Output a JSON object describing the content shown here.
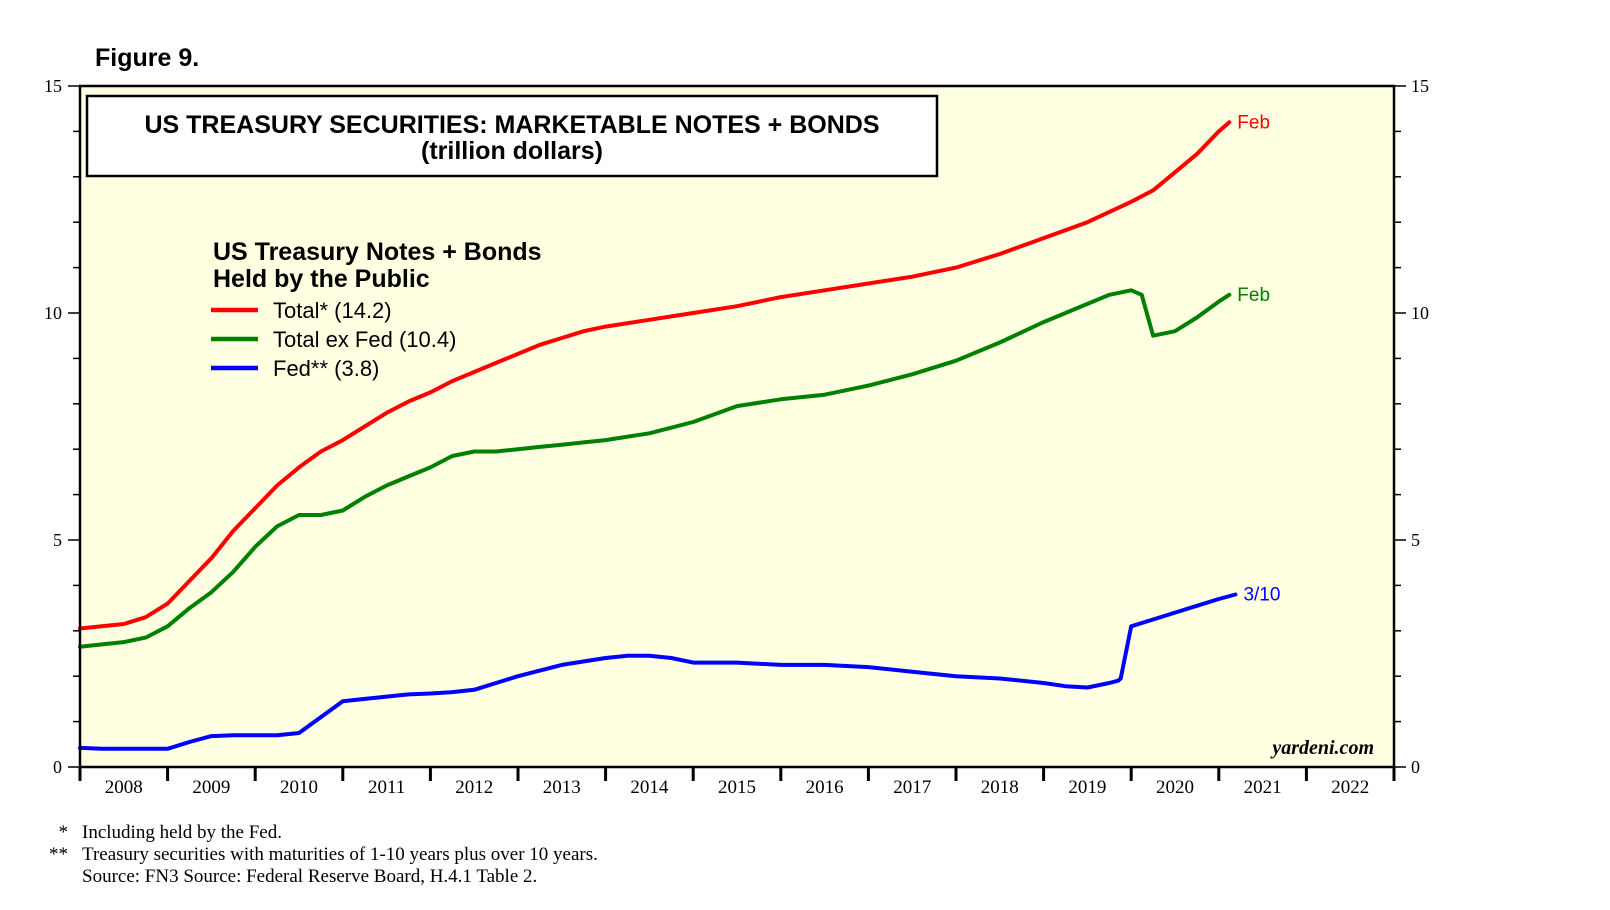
{
  "figure_label": "Figure 9.",
  "chart_data": {
    "type": "line",
    "title": "US TREASURY SECURITIES: MARKETABLE NOTES + BONDS",
    "subtitle": "(trillion dollars)",
    "legend_title_1": "US Treasury Notes + Bonds",
    "legend_title_2": "Held by the Public",
    "legend_position": "top-left",
    "ylim": [
      0,
      15
    ],
    "y_ticks": [
      0,
      5,
      10,
      15
    ],
    "y_tick_labels": [
      "0",
      "5",
      "10",
      "15"
    ],
    "x_range": [
      2008,
      2023
    ],
    "x_tick_labels": [
      "2008",
      "2009",
      "2010",
      "2011",
      "2012",
      "2013",
      "2014",
      "2015",
      "2016",
      "2017",
      "2018",
      "2019",
      "2020",
      "2021",
      "2022"
    ],
    "watermark": "yardeni.com",
    "series": [
      {
        "name": "Total* (14.2)",
        "color": "#ff0000",
        "end_label": "Feb",
        "x": [
          2008.0,
          2008.25,
          2008.5,
          2008.75,
          2009.0,
          2009.25,
          2009.5,
          2009.75,
          2010.0,
          2010.25,
          2010.5,
          2010.75,
          2011.0,
          2011.25,
          2011.5,
          2011.75,
          2012.0,
          2012.25,
          2012.5,
          2012.75,
          2013.0,
          2013.25,
          2013.5,
          2013.75,
          2014.0,
          2014.5,
          2015.0,
          2015.5,
          2016.0,
          2016.5,
          2017.0,
          2017.5,
          2018.0,
          2018.5,
          2019.0,
          2019.5,
          2020.0,
          2020.25,
          2020.5,
          2020.75,
          2021.0,
          2021.12
        ],
        "values": [
          3.05,
          3.1,
          3.15,
          3.3,
          3.6,
          4.1,
          4.6,
          5.2,
          5.7,
          6.2,
          6.6,
          6.95,
          7.2,
          7.5,
          7.8,
          8.05,
          8.25,
          8.5,
          8.7,
          8.9,
          9.1,
          9.3,
          9.45,
          9.6,
          9.7,
          9.85,
          10.0,
          10.15,
          10.35,
          10.5,
          10.65,
          10.8,
          11.0,
          11.3,
          11.65,
          12.0,
          12.45,
          12.7,
          13.1,
          13.5,
          14.0,
          14.2
        ]
      },
      {
        "name": "Total ex Fed (10.4)",
        "color": "#008000",
        "end_label": "Feb",
        "x": [
          2008.0,
          2008.25,
          2008.5,
          2008.75,
          2009.0,
          2009.25,
          2009.5,
          2009.75,
          2010.0,
          2010.25,
          2010.5,
          2010.75,
          2011.0,
          2011.25,
          2011.5,
          2011.75,
          2012.0,
          2012.25,
          2012.5,
          2012.75,
          2013.0,
          2013.25,
          2013.5,
          2013.75,
          2014.0,
          2014.5,
          2015.0,
          2015.5,
          2016.0,
          2016.5,
          2017.0,
          2017.5,
          2018.0,
          2018.5,
          2019.0,
          2019.5,
          2019.75,
          2020.0,
          2020.12,
          2020.25,
          2020.5,
          2020.75,
          2021.0,
          2021.12
        ],
        "values": [
          2.65,
          2.7,
          2.75,
          2.85,
          3.1,
          3.5,
          3.85,
          4.3,
          4.85,
          5.3,
          5.55,
          5.55,
          5.65,
          5.95,
          6.2,
          6.4,
          6.6,
          6.85,
          6.95,
          6.95,
          7.0,
          7.05,
          7.1,
          7.15,
          7.2,
          7.35,
          7.6,
          7.95,
          8.1,
          8.2,
          8.4,
          8.65,
          8.95,
          9.35,
          9.8,
          10.2,
          10.4,
          10.5,
          10.4,
          9.5,
          9.6,
          9.9,
          10.25,
          10.4
        ]
      },
      {
        "name": "Fed** (3.8)",
        "color": "#0000ff",
        "end_label": "3/10",
        "x": [
          2008.0,
          2008.25,
          2008.5,
          2008.75,
          2009.0,
          2009.25,
          2009.5,
          2009.75,
          2010.0,
          2010.25,
          2010.5,
          2010.75,
          2011.0,
          2011.25,
          2011.5,
          2011.75,
          2012.0,
          2012.25,
          2012.5,
          2012.75,
          2013.0,
          2013.5,
          2014.0,
          2014.25,
          2014.5,
          2014.75,
          2015.0,
          2015.5,
          2016.0,
          2016.5,
          2017.0,
          2017.5,
          2018.0,
          2018.5,
          2019.0,
          2019.25,
          2019.5,
          2019.75,
          2019.85,
          2019.88,
          2020.0,
          2020.25,
          2020.5,
          2020.75,
          2021.0,
          2021.19
        ],
        "values": [
          0.42,
          0.4,
          0.4,
          0.4,
          0.4,
          0.55,
          0.68,
          0.7,
          0.7,
          0.7,
          0.75,
          1.1,
          1.45,
          1.5,
          1.55,
          1.6,
          1.62,
          1.65,
          1.7,
          1.85,
          2.0,
          2.25,
          2.4,
          2.45,
          2.45,
          2.4,
          2.3,
          2.3,
          2.25,
          2.25,
          2.2,
          2.1,
          2.0,
          1.95,
          1.85,
          1.78,
          1.75,
          1.85,
          1.9,
          1.95,
          3.1,
          3.25,
          3.4,
          3.55,
          3.7,
          3.8
        ]
      }
    ]
  },
  "footnotes": [
    {
      "mark": "*",
      "text": "Including held by the Fed."
    },
    {
      "mark": "**",
      "text": "Treasury securities with maturities of 1-10 years plus over 10 years."
    },
    {
      "mark": "",
      "text": "Source: FN3 Source: Federal Reserve Board, H.4.1 Table 2."
    }
  ]
}
